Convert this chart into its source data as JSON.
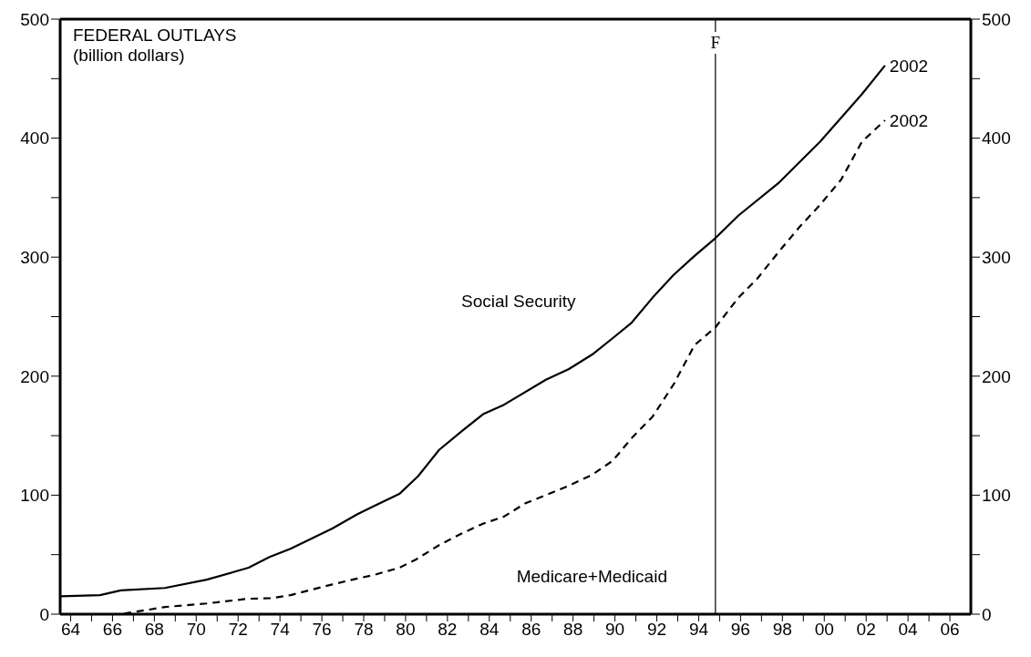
{
  "chart_data": {
    "type": "line",
    "title": "FEDERAL OUTLAYS",
    "subtitle": "(billion dollars)",
    "xlim": [
      1963.5,
      2007
    ],
    "xticks": [
      {
        "value": 1964,
        "label": "64"
      },
      {
        "value": 1965,
        "label": null
      },
      {
        "value": 1966,
        "label": "66"
      },
      {
        "value": 1967,
        "label": null
      },
      {
        "value": 1968,
        "label": "68"
      },
      {
        "value": 1969,
        "label": null
      },
      {
        "value": 1970,
        "label": "70"
      },
      {
        "value": 1971,
        "label": null
      },
      {
        "value": 1972,
        "label": "72"
      },
      {
        "value": 1973,
        "label": null
      },
      {
        "value": 1974,
        "label": "74"
      },
      {
        "value": 1975,
        "label": null
      },
      {
        "value": 1976,
        "label": "76"
      },
      {
        "value": 1977,
        "label": null
      },
      {
        "value": 1978,
        "label": "78"
      },
      {
        "value": 1979,
        "label": null
      },
      {
        "value": 1980,
        "label": "80"
      },
      {
        "value": 1981,
        "label": null
      },
      {
        "value": 1982,
        "label": "82"
      },
      {
        "value": 1983,
        "label": null
      },
      {
        "value": 1984,
        "label": "84"
      },
      {
        "value": 1985,
        "label": null
      },
      {
        "value": 1986,
        "label": "86"
      },
      {
        "value": 1987,
        "label": null
      },
      {
        "value": 1988,
        "label": "88"
      },
      {
        "value": 1989,
        "label": null
      },
      {
        "value": 1990,
        "label": "90"
      },
      {
        "value": 1991,
        "label": null
      },
      {
        "value": 1992,
        "label": "92"
      },
      {
        "value": 1993,
        "label": null
      },
      {
        "value": 1994,
        "label": "94"
      },
      {
        "value": 1995,
        "label": null
      },
      {
        "value": 1996,
        "label": "96"
      },
      {
        "value": 1997,
        "label": null
      },
      {
        "value": 1998,
        "label": "98"
      },
      {
        "value": 1999,
        "label": null
      },
      {
        "value": 2000,
        "label": "00"
      },
      {
        "value": 2001,
        "label": null
      },
      {
        "value": 2002,
        "label": "02"
      },
      {
        "value": 2003,
        "label": null
      },
      {
        "value": 2004,
        "label": "04"
      },
      {
        "value": 2005,
        "label": null
      },
      {
        "value": 2006,
        "label": "06"
      }
    ],
    "ylim": [
      0,
      500
    ],
    "yticks": [
      0,
      {
        "value": 50,
        "label": null
      },
      100,
      {
        "value": 150,
        "label": null
      },
      200,
      {
        "value": 250,
        "label": null
      },
      300,
      {
        "value": 350,
        "label": null
      },
      400,
      {
        "value": 450,
        "label": null
      },
      500
    ],
    "y2lim": [
      0,
      500
    ],
    "y2ticks": [
      0,
      {
        "value": 50,
        "label": null
      },
      100,
      {
        "value": 150,
        "label": null
      },
      200,
      {
        "value": 250,
        "label": null
      },
      300,
      {
        "value": 350,
        "label": null
      },
      400,
      {
        "value": 450,
        "label": null
      },
      500
    ],
    "marker": "none",
    "series": [
      {
        "name": "Social Security",
        "color": "#000000",
        "line_style": "solid",
        "x": [
          1963.5,
          1965.4,
          1966.4,
          1968.5,
          1970.5,
          1972.5,
          1973.5,
          1974.5,
          1976.5,
          1977.7,
          1978.5,
          1979.7,
          1980.6,
          1981.6,
          1982.7,
          1983.7,
          1984.7,
          1986.7,
          1987.8,
          1988.9,
          1989.9,
          1990.8,
          1991.8,
          1992.8,
          1993.8,
          1994.8,
          1995.9,
          1997.8,
          1999.8,
          2001.8,
          2002.9
        ],
        "values": [
          15,
          16,
          20,
          22,
          29,
          39,
          48,
          55,
          72,
          84,
          91,
          101,
          116,
          138,
          154,
          168,
          176,
          197,
          206,
          218,
          232,
          245,
          266,
          285,
          301,
          316,
          335,
          362,
          397,
          437,
          461
        ]
      },
      {
        "name": "Medicare+Medicaid",
        "color": "#000000",
        "line_style": "dashed",
        "x": [
          1963.5,
          1966.4,
          1968.5,
          1970.5,
          1972.5,
          1973.6,
          1974.5,
          1976.5,
          1977.7,
          1978.5,
          1979.7,
          1980.5,
          1981.6,
          1982.7,
          1983.7,
          1984.7,
          1985.7,
          1986.7,
          1987.8,
          1988.9,
          1989.9,
          1990.8,
          1991.8,
          1992.8,
          1993.8,
          1994.8,
          1995.9,
          1996.8,
          1997.8,
          1998.8,
          1999.8,
          2000.8,
          2001.8,
          2002.9
        ],
        "values": [
          0,
          0,
          6,
          9,
          13,
          13.4,
          16,
          25,
          30,
          33,
          39,
          46,
          58,
          68,
          76,
          82,
          93,
          100,
          108,
          117,
          129,
          148,
          166,
          193,
          226,
          241,
          266,
          282,
          304,
          325,
          344,
          365,
          397,
          415
        ]
      }
    ],
    "ref_lines": [
      {
        "axis": "x",
        "value": 1994.8,
        "label": "F",
        "color": "#000000",
        "line_style": "solid"
      }
    ],
    "annotations": [
      {
        "text": "2002",
        "x": 2002.9,
        "y": 461
      },
      {
        "text": "2002",
        "x": 2002.9,
        "y": 415
      }
    ]
  }
}
